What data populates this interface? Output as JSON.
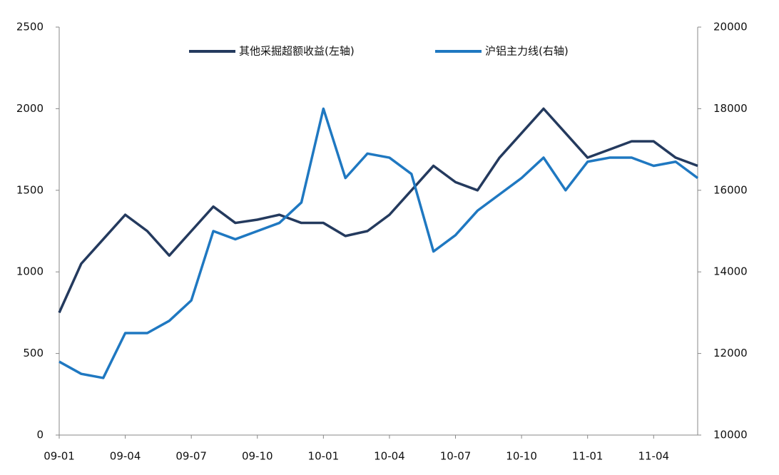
{
  "chart_data": {
    "type": "line",
    "categories": [
      "09-01",
      null,
      null,
      "09-04",
      null,
      null,
      "09-07",
      null,
      null,
      "09-10",
      null,
      null,
      "10-01",
      null,
      null,
      "10-04",
      null,
      null,
      "10-07",
      null,
      null,
      "10-10",
      null,
      null,
      "11-01",
      null,
      null,
      "11-04",
      null,
      null
    ],
    "series": [
      {
        "name": "其他采掘超额收益(左轴)",
        "color": "#243a5e",
        "values": [
          750,
          1050,
          1200,
          1350,
          1250,
          1100,
          1250,
          1400,
          1300,
          1320,
          1350,
          1300,
          1300,
          1220,
          1250,
          1350,
          1500,
          1650,
          1550,
          1500,
          1700,
          1850,
          2000,
          1850,
          1700,
          1750,
          1800,
          1800,
          1700,
          1650
        ]
      },
      {
        "name": "沪铝主力线(右轴)",
        "color": "#1f78c1",
        "axis": "y2",
        "values": [
          11800,
          11500,
          11400,
          12500,
          12500,
          12800,
          13300,
          15000,
          14800,
          15000,
          15200,
          15700,
          18000,
          16300,
          16900,
          16800,
          16400,
          14500,
          14900,
          15500,
          15900,
          16300,
          16800,
          16000,
          16700,
          16800,
          16800,
          16600,
          16700,
          16300
        ]
      }
    ],
    "ylim": [
      0,
      2500
    ],
    "yticks": [
      0,
      500,
      1000,
      1500,
      2000,
      2500
    ],
    "y2lim": [
      10000,
      20000
    ],
    "y2ticks": [
      10000,
      12000,
      14000,
      16000,
      18000,
      20000
    ],
    "legend": "top"
  }
}
